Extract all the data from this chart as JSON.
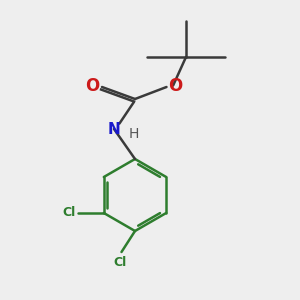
{
  "bg_color": "#eeeeee",
  "bond_color": "#3a3a3a",
  "bond_width": 1.8,
  "ring_bond_color": "#2e7d2e",
  "N_color": "#1a1acc",
  "O_color": "#cc1a1a",
  "Cl_color": "#2e7d2e",
  "H_color": "#555555",
  "fig_size": [
    3.0,
    3.0
  ],
  "dpi": 100,
  "xlim": [
    0,
    10
  ],
  "ylim": [
    0,
    10
  ]
}
